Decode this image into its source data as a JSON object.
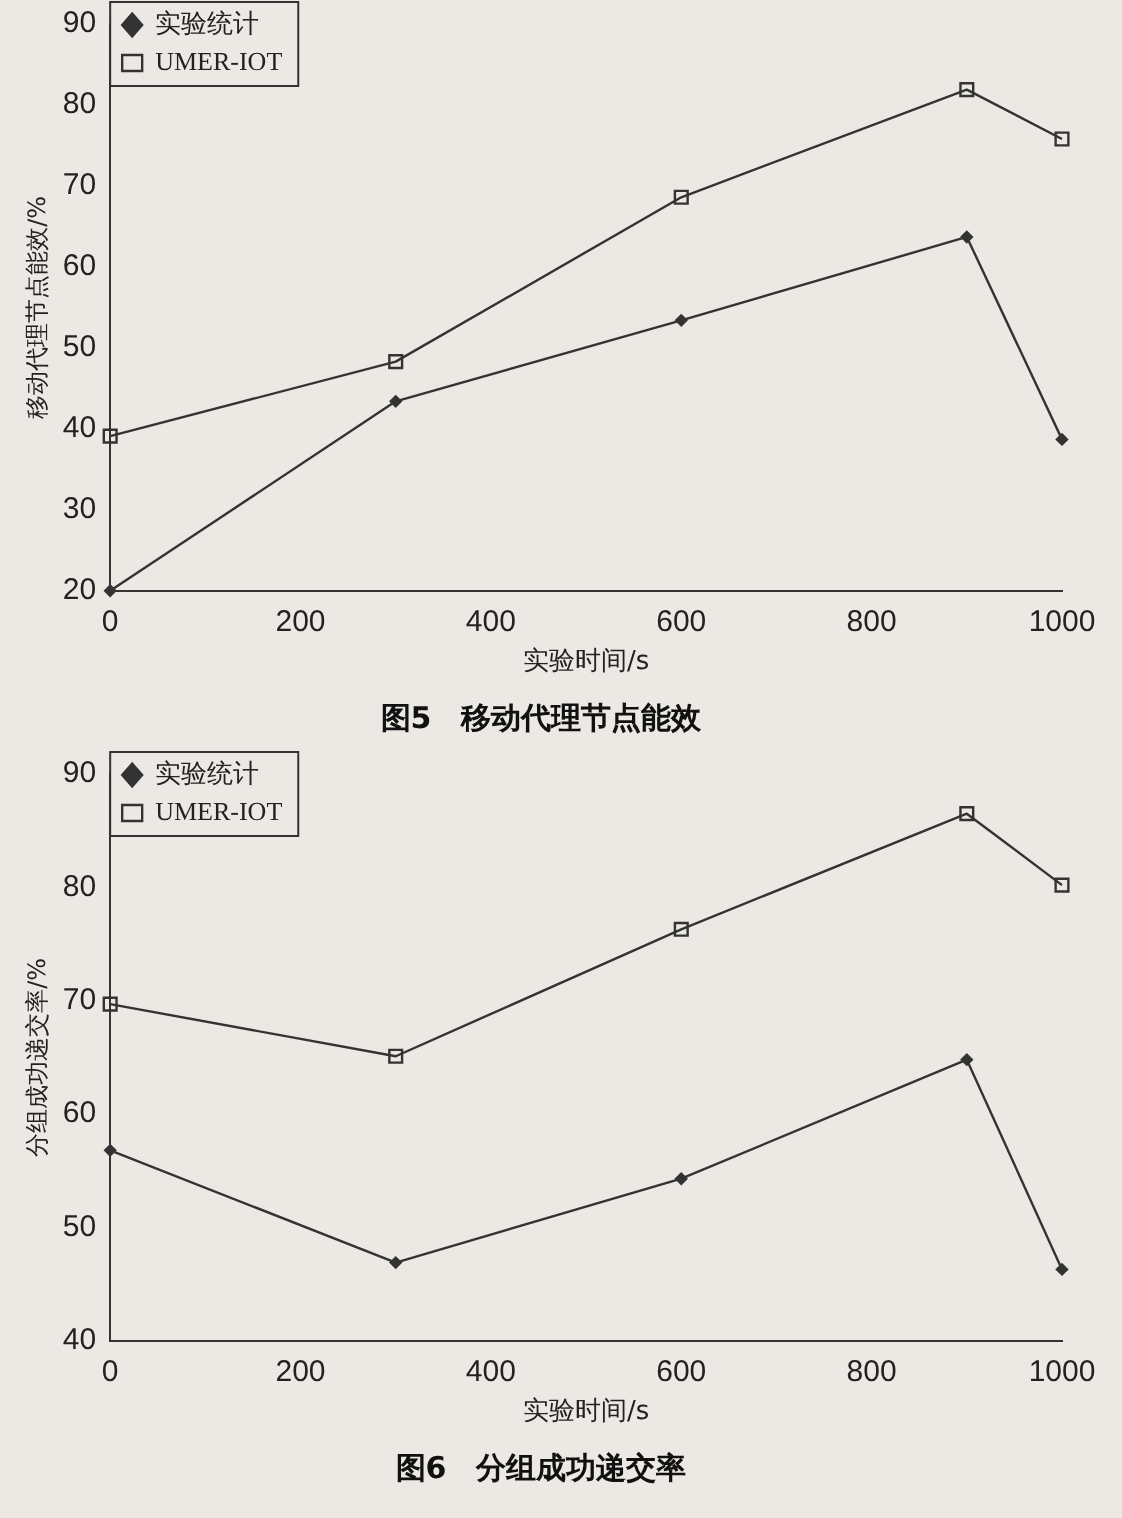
{
  "chart_data": [
    {
      "type": "line",
      "title": "图5　移动代理节点能效",
      "xlabel": "实验时间/s",
      "ylabel": "移动代理节点能效/%",
      "xlim": [
        0,
        1000
      ],
      "xticks": [
        0,
        200,
        400,
        600,
        800,
        1000
      ],
      "ylim": [
        20,
        90
      ],
      "yticks": [
        20,
        30,
        40,
        50,
        60,
        70,
        80,
        90
      ],
      "grid": false,
      "legend": "top left",
      "line_style": "solid",
      "series": [
        {
          "name": "实验统计",
          "color": "#333333",
          "marker": "diamond",
          "x": [
            0,
            300,
            600,
            900,
            1000
          ],
          "values": [
            20,
            43.4,
            53.4,
            63.7,
            38.7
          ]
        },
        {
          "name": "UMER-IOT",
          "color": "#333333",
          "marker": "square",
          "x": [
            0,
            300,
            600,
            900,
            1000
          ],
          "values": [
            39.1,
            48.3,
            68.6,
            81.9,
            75.8
          ]
        }
      ]
    },
    {
      "type": "line",
      "title": "图6　分组成功递交率",
      "xlabel": "实验时间/s",
      "ylabel": "分组成功递交率/%",
      "xlim": [
        0,
        1000
      ],
      "xticks": [
        0,
        200,
        400,
        600,
        800,
        1000
      ],
      "ylim": [
        40,
        90
      ],
      "yticks": [
        40,
        50,
        60,
        70,
        80,
        90
      ],
      "grid": false,
      "legend": "top left",
      "line_style": "solid",
      "series": [
        {
          "name": "实验统计",
          "color": "#333333",
          "marker": "diamond",
          "x": [
            0,
            300,
            600,
            900,
            1000
          ],
          "values": [
            56.8,
            46.9,
            54.3,
            64.8,
            46.3
          ]
        },
        {
          "name": "UMER-IOT",
          "color": "#333333",
          "marker": "square",
          "x": [
            0,
            300,
            600,
            900,
            1000
          ],
          "values": [
            69.7,
            65.1,
            76.3,
            86.5,
            80.2
          ]
        }
      ]
    }
  ]
}
